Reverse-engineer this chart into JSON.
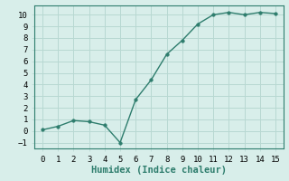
{
  "x": [
    0,
    1,
    2,
    3,
    4,
    5,
    6,
    7,
    8,
    9,
    10,
    11,
    12,
    13,
    14,
    15
  ],
  "y": [
    0.1,
    0.4,
    0.9,
    0.8,
    0.5,
    -1.0,
    2.7,
    4.4,
    6.6,
    7.8,
    9.2,
    10.0,
    10.2,
    10.0,
    10.2,
    10.1
  ],
  "line_color": "#2e7d6d",
  "marker": "o",
  "marker_size": 2.5,
  "line_width": 1.0,
  "background_color": "#d8eeea",
  "grid_color": "#b8d8d2",
  "xlabel": "Humidex (Indice chaleur)",
  "xlabel_fontsize": 7.5,
  "xlabel_fontfamily": "monospace",
  "xticks": [
    0,
    1,
    2,
    3,
    4,
    5,
    6,
    7,
    8,
    9,
    10,
    11,
    12,
    13,
    14,
    15
  ],
  "yticks": [
    -1,
    0,
    1,
    2,
    3,
    4,
    5,
    6,
    7,
    8,
    9,
    10
  ],
  "xlim": [
    -0.5,
    15.5
  ],
  "ylim": [
    -1.5,
    10.8
  ],
  "tick_fontsize": 6.5,
  "tick_fontfamily": "monospace"
}
